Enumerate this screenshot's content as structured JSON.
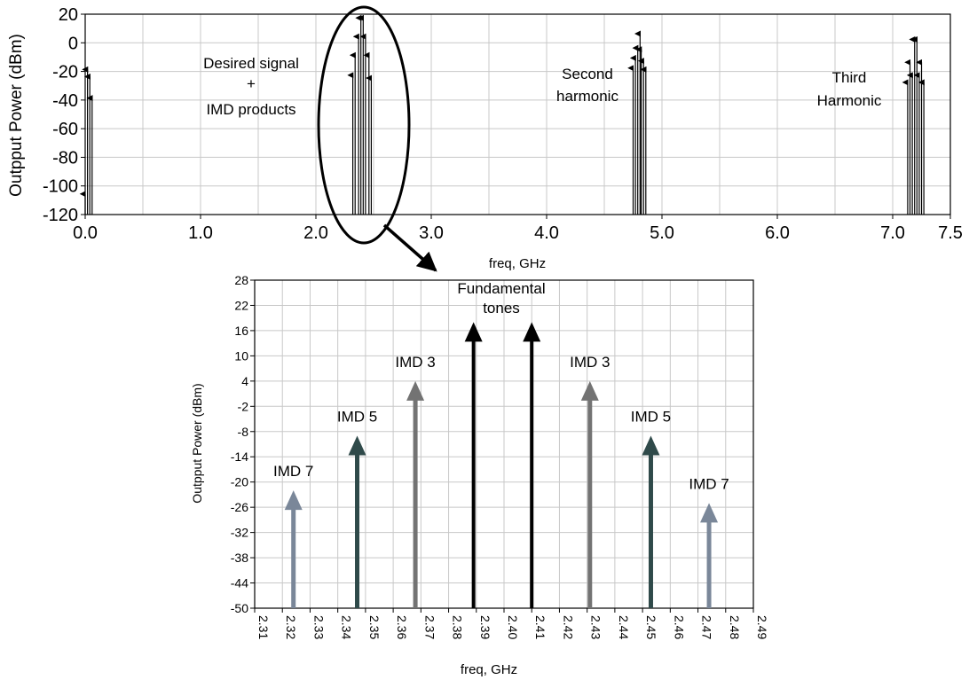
{
  "chart_data": [
    {
      "type": "spectrum",
      "ylabel": "Outpput Power (dBm)",
      "xlabel": "freq, GHz",
      "xlim": [
        0.0,
        7.5
      ],
      "ylim": [
        -120,
        20
      ],
      "x_ticks": [
        "0.0",
        "1.0",
        "2.0",
        "3.0",
        "4.0",
        "5.0",
        "6.0",
        "7.0",
        "7.5"
      ],
      "x_tick_values": [
        0.0,
        1.0,
        2.0,
        3.0,
        4.0,
        5.0,
        6.0,
        7.0,
        7.5
      ],
      "y_ticks": [
        "20",
        "0",
        "-20",
        "-40",
        "-60",
        "-80",
        "-100",
        "-120"
      ],
      "y_tick_values": [
        20,
        0,
        -20,
        -40,
        -60,
        -80,
        -100,
        -120
      ],
      "grid": true,
      "tones": [
        {
          "x": 0.0,
          "y": -105
        },
        {
          "x": 0.02,
          "y": -18
        },
        {
          "x": 0.04,
          "y": -23
        },
        {
          "x": 0.06,
          "y": -38
        },
        {
          "x": 2.32,
          "y": -22
        },
        {
          "x": 2.34,
          "y": -8
        },
        {
          "x": 2.37,
          "y": 5
        },
        {
          "x": 2.39,
          "y": 18
        },
        {
          "x": 2.41,
          "y": 18
        },
        {
          "x": 2.43,
          "y": 5
        },
        {
          "x": 2.46,
          "y": -8
        },
        {
          "x": 2.48,
          "y": -24
        },
        {
          "x": 4.75,
          "y": -17
        },
        {
          "x": 4.77,
          "y": -10
        },
        {
          "x": 4.79,
          "y": -3
        },
        {
          "x": 4.81,
          "y": 7
        },
        {
          "x": 4.82,
          "y": -4
        },
        {
          "x": 4.84,
          "y": -12
        },
        {
          "x": 4.86,
          "y": -18
        },
        {
          "x": 7.13,
          "y": -27
        },
        {
          "x": 7.15,
          "y": -13
        },
        {
          "x": 7.17,
          "y": -22
        },
        {
          "x": 7.19,
          "y": 3
        },
        {
          "x": 7.21,
          "y": 3
        },
        {
          "x": 7.23,
          "y": -22
        },
        {
          "x": 7.25,
          "y": -13
        },
        {
          "x": 7.27,
          "y": -27
        }
      ],
      "annotations": [
        {
          "lines": [
            "Desired signal",
            "+",
            "IMD products"
          ]
        },
        {
          "lines": [
            "Second",
            "harmonic"
          ]
        },
        {
          "lines": [
            "Third",
            "Harmonic"
          ]
        }
      ]
    },
    {
      "type": "spectrum",
      "ylabel": "Outpput Power (dBm)",
      "xlabel": "freq, GHz",
      "xlim": [
        2.31,
        2.49
      ],
      "ylim": [
        -50,
        28
      ],
      "x_ticks": [
        "2.31",
        "2.32",
        "2.33",
        "2.34",
        "2.35",
        "2.36",
        "2.37",
        "2.38",
        "2.39",
        "2.40",
        "2.41",
        "2.42",
        "2.43",
        "2.44",
        "2.45",
        "2.46",
        "2.47",
        "2.48",
        "2.49"
      ],
      "x_tick_values": [
        2.31,
        2.32,
        2.33,
        2.34,
        2.35,
        2.36,
        2.37,
        2.38,
        2.39,
        2.4,
        2.41,
        2.42,
        2.43,
        2.44,
        2.45,
        2.46,
        2.47,
        2.48,
        2.49
      ],
      "y_ticks": [
        "28",
        "22",
        "16",
        "10",
        "4",
        "-2",
        "-8",
        "-14",
        "-20",
        "-26",
        "-32",
        "-38",
        "-44",
        "-50"
      ],
      "y_tick_values": [
        28,
        22,
        16,
        10,
        4,
        -2,
        -8,
        -14,
        -20,
        -26,
        -32,
        -38,
        -44,
        -50
      ],
      "grid": true,
      "tones": [
        {
          "x": 2.324,
          "y": -22,
          "label": "IMD 7",
          "color": "#7a8799"
        },
        {
          "x": 2.347,
          "y": -9,
          "label": "IMD 5",
          "color": "#2f4a4a"
        },
        {
          "x": 2.368,
          "y": 4,
          "label": "IMD 3",
          "color": "#737373"
        },
        {
          "x": 2.389,
          "y": 18,
          "label": "",
          "color": "#000000"
        },
        {
          "x": 2.41,
          "y": 18,
          "label": "",
          "color": "#000000"
        },
        {
          "x": 2.431,
          "y": 4,
          "label": "IMD 3",
          "color": "#737373"
        },
        {
          "x": 2.453,
          "y": -9,
          "label": "IMD 5",
          "color": "#2f4a4a"
        },
        {
          "x": 2.474,
          "y": -25,
          "label": "IMD 7",
          "color": "#7a8799"
        }
      ],
      "annotations": [
        {
          "lines": [
            "Fundamental",
            "tones"
          ]
        }
      ]
    }
  ]
}
